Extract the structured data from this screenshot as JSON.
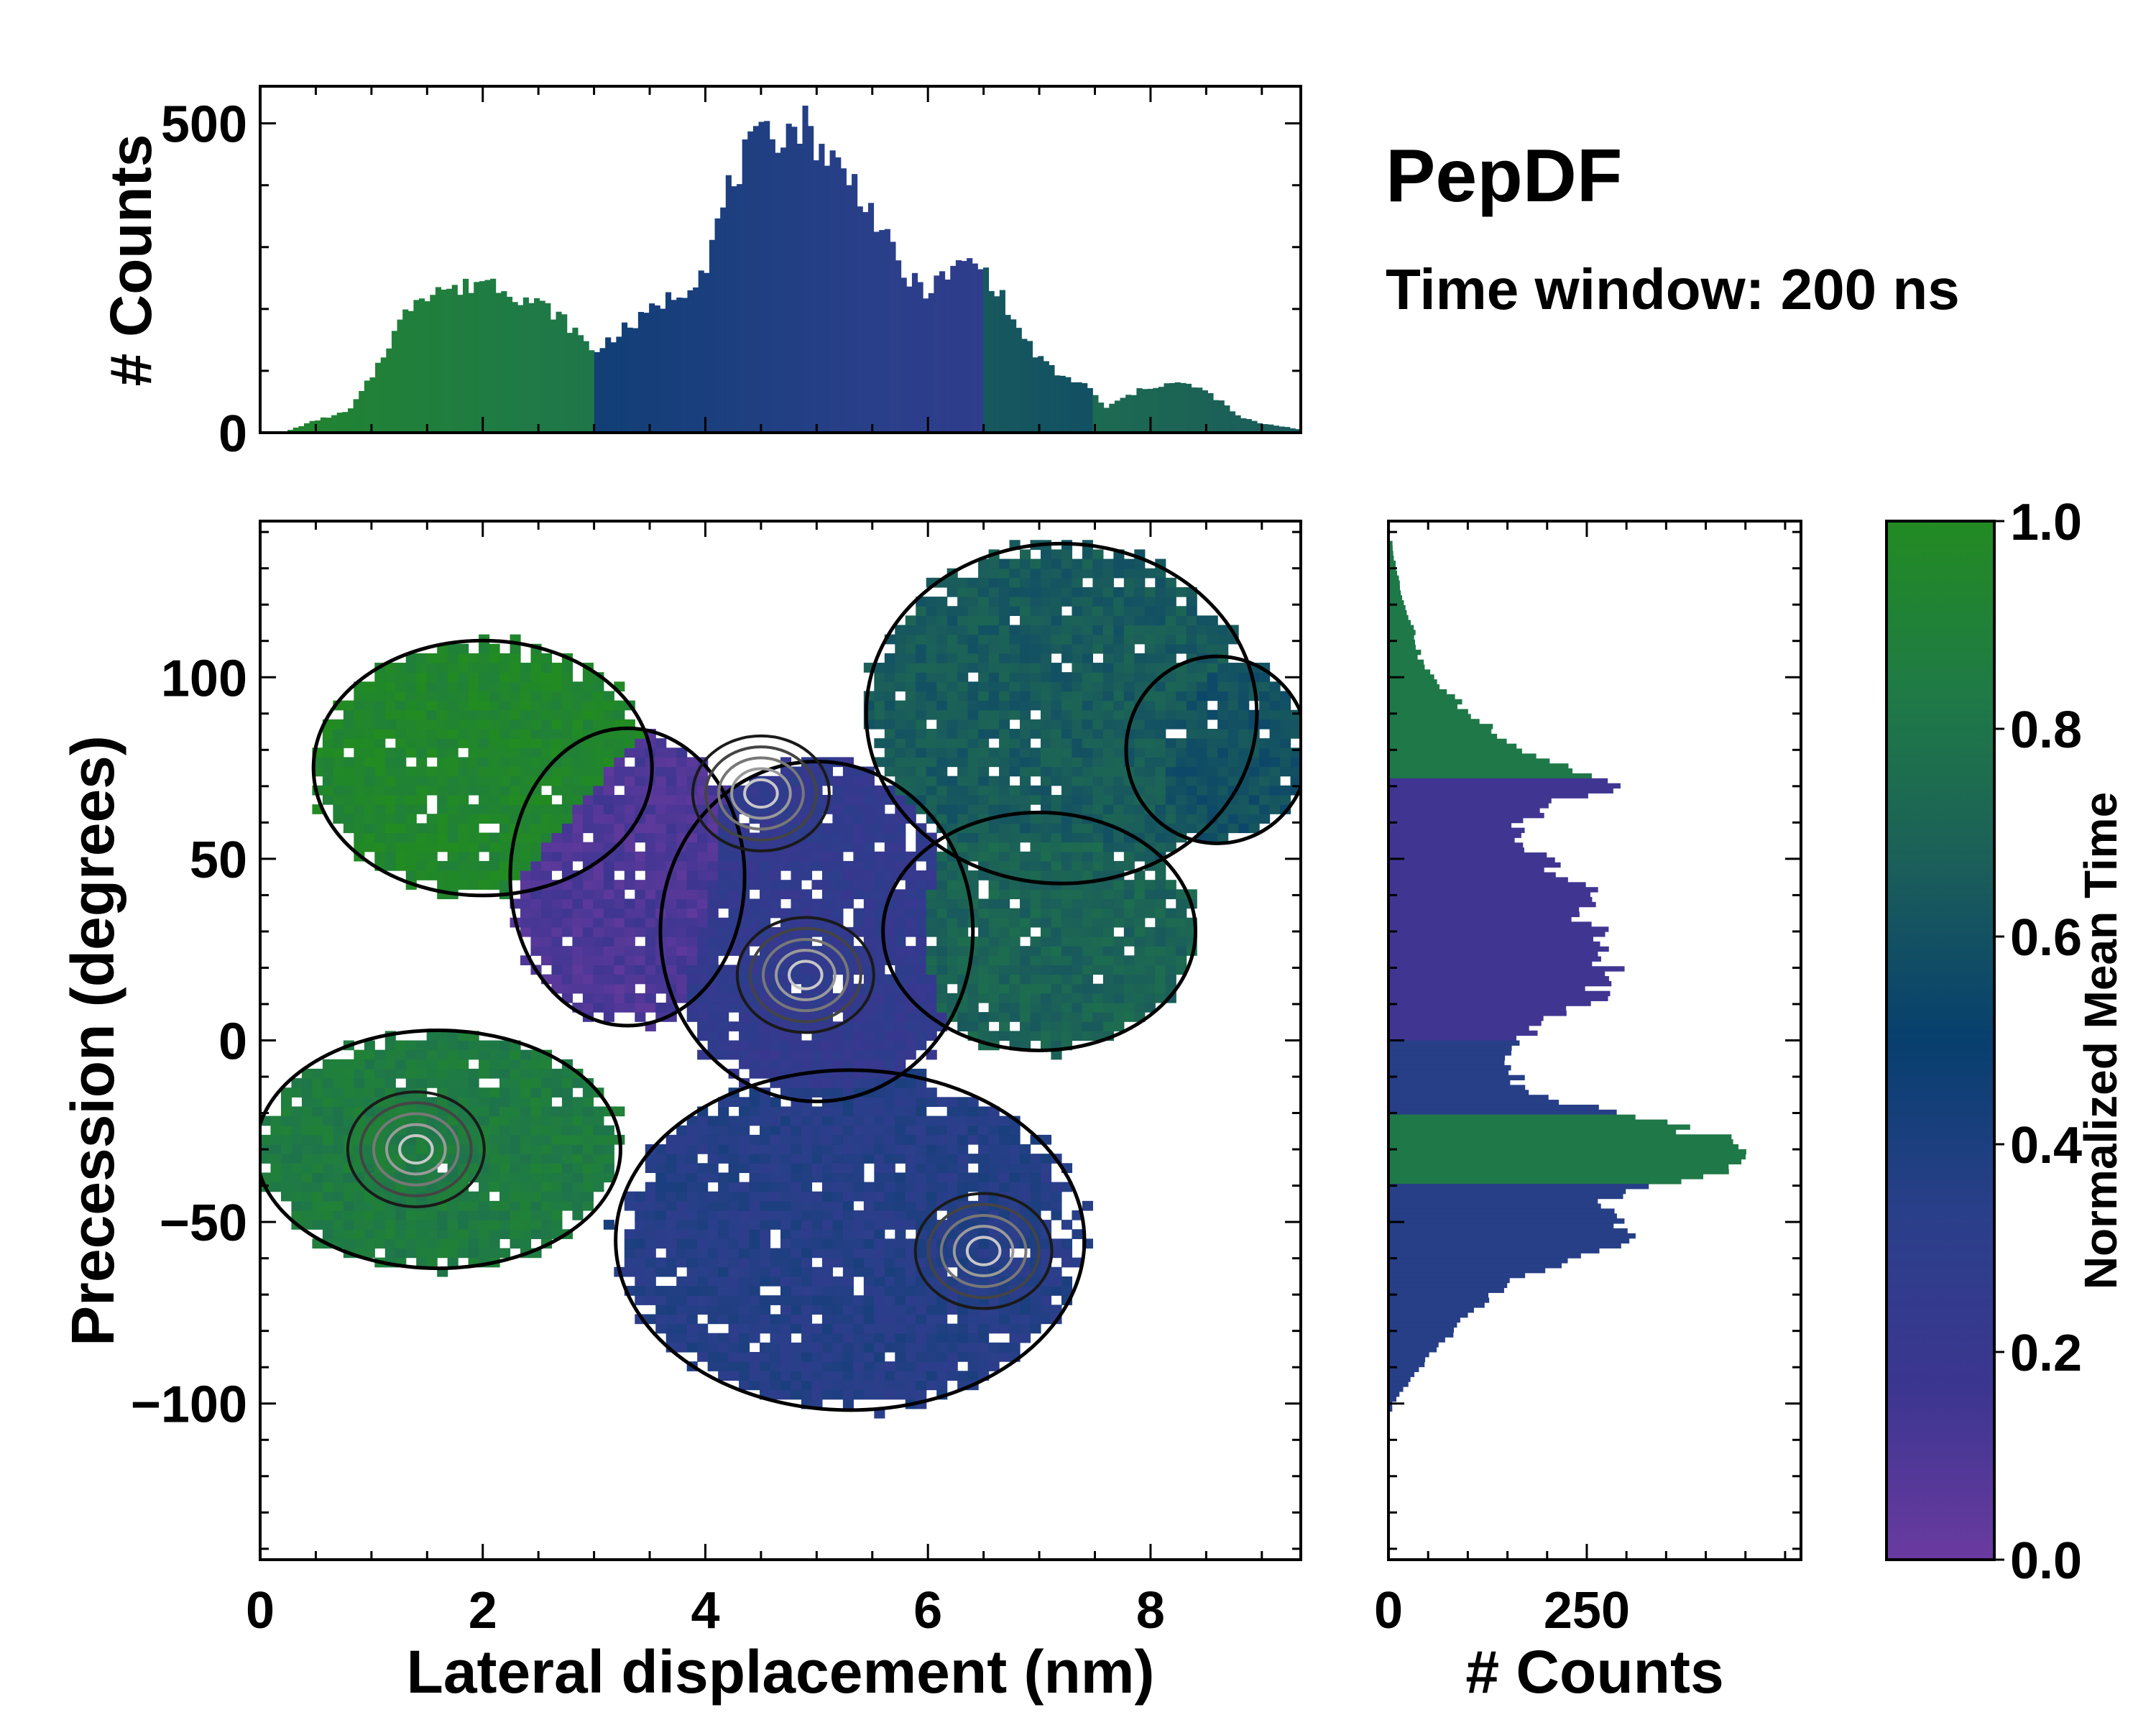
{
  "figure": {
    "title": "PepDF",
    "subtitle": "Time window: 200 ns"
  },
  "chart_data": [
    {
      "type": "heatmap",
      "name": "joint-distribution",
      "xlabel": "Lateral displacement (nm)",
      "ylabel": "Precession (degrees)",
      "xlim": [
        0,
        9.35
      ],
      "ylim": [
        -143,
        143
      ],
      "xticks": [
        0,
        2,
        4,
        6,
        8
      ],
      "yticks": [
        -100,
        -50,
        0,
        50,
        100
      ],
      "xtick_labels": [
        "0",
        "2",
        "4",
        "6",
        "8"
      ],
      "ytick_labels": [
        "−100",
        "−50",
        "0",
        "50",
        "100"
      ],
      "color_metric": "Normalized Mean Time",
      "regions": [
        {
          "name": "left-cluster-upper",
          "cx": 2.0,
          "cy": 75,
          "rx": 1.3,
          "ry": 30,
          "value": 0.95
        },
        {
          "name": "left-cluster-lower",
          "cx": 1.6,
          "cy": -30,
          "rx": 1.4,
          "ry": 28,
          "value": 0.85
        },
        {
          "name": "mid-cluster",
          "cx": 3.3,
          "cy": 45,
          "rx": 0.9,
          "ry": 35,
          "value": 0.1
        },
        {
          "name": "central-upper",
          "cx": 5.0,
          "cy": 30,
          "rx": 1.2,
          "ry": 40,
          "value": 0.25
        },
        {
          "name": "central-lower",
          "cx": 5.3,
          "cy": -55,
          "rx": 1.8,
          "ry": 40,
          "value": 0.35
        },
        {
          "name": "right-upper",
          "cx": 7.2,
          "cy": 90,
          "rx": 1.5,
          "ry": 40,
          "value": 0.65
        },
        {
          "name": "right-mid",
          "cx": 7.0,
          "cy": 30,
          "rx": 1.2,
          "ry": 28,
          "value": 0.7
        },
        {
          "name": "far-right",
          "cx": 8.6,
          "cy": 80,
          "rx": 0.7,
          "ry": 22,
          "value": 0.6
        }
      ],
      "density_peaks": [
        {
          "x": 4.9,
          "y": 18
        },
        {
          "x": 1.4,
          "y": -30
        },
        {
          "x": 6.5,
          "y": -58
        },
        {
          "x": 4.5,
          "y": 68
        }
      ]
    },
    {
      "type": "bar",
      "name": "top-histogram",
      "ylabel": "# Counts",
      "ylim": [
        0,
        560
      ],
      "yticks": [
        0,
        500
      ],
      "ytick_labels": [
        "0",
        "500"
      ],
      "x_range": [
        0,
        9.35
      ],
      "envelope_x": [
        0.2,
        0.5,
        0.8,
        1.0,
        1.2,
        1.4,
        1.6,
        1.8,
        2.0,
        2.2,
        2.4,
        2.6,
        2.8,
        3.0,
        3.2,
        3.4,
        3.6,
        3.8,
        4.0,
        4.2,
        4.4,
        4.6,
        4.8,
        4.9,
        5.0,
        5.2,
        5.4,
        5.6,
        5.8,
        6.0,
        6.2,
        6.4,
        6.6,
        6.8,
        7.0,
        7.2,
        7.4,
        7.6,
        7.8,
        8.0,
        8.2,
        8.4,
        8.6,
        8.8,
        9.0,
        9.2,
        9.35
      ],
      "envelope_counts": [
        0,
        20,
        35,
        90,
        160,
        220,
        235,
        230,
        250,
        235,
        215,
        200,
        170,
        130,
        160,
        180,
        210,
        230,
        270,
        390,
        460,
        480,
        495,
        500,
        470,
        430,
        390,
        320,
        250,
        230,
        260,
        280,
        240,
        170,
        120,
        90,
        80,
        40,
        60,
        75,
        80,
        75,
        55,
        25,
        15,
        10,
        5
      ],
      "color_by": "Normalized Mean Time"
    },
    {
      "type": "bar",
      "name": "right-histogram",
      "xlabel": "# Counts",
      "xlim": [
        0,
        520
      ],
      "xticks": [
        0,
        250
      ],
      "xtick_labels": [
        "0",
        "250"
      ],
      "y_range": [
        -143,
        143
      ],
      "envelope_y": [
        -100,
        -90,
        -80,
        -70,
        -60,
        -55,
        -50,
        -45,
        -40,
        -35,
        -30,
        -25,
        -20,
        -15,
        -10,
        -5,
        0,
        5,
        10,
        15,
        20,
        25,
        30,
        35,
        40,
        45,
        50,
        55,
        60,
        65,
        70,
        75,
        80,
        85,
        90,
        95,
        100,
        105,
        110,
        115,
        120,
        125,
        130,
        135
      ],
      "envelope_counts": [
        5,
        40,
        80,
        130,
        220,
        300,
        290,
        250,
        330,
        420,
        440,
        390,
        300,
        180,
        160,
        150,
        160,
        200,
        250,
        270,
        280,
        260,
        270,
        240,
        260,
        220,
        200,
        150,
        170,
        200,
        290,
        230,
        170,
        140,
        100,
        80,
        55,
        40,
        35,
        30,
        20,
        15,
        10,
        5
      ],
      "color_by": "Normalized Mean Time"
    }
  ],
  "colorbar": {
    "label": "Normalized Mean Time",
    "range": [
      0,
      1
    ],
    "ticks": [
      0,
      0.2,
      0.4,
      0.6,
      0.8,
      1.0
    ],
    "tick_labels": [
      "0.0",
      "0.2",
      "0.4",
      "0.6",
      "0.8",
      "1.0"
    ],
    "colors": [
      "#6a3aa0",
      "#3b3690",
      "#2a3f8a",
      "#073f6e",
      "#1b5e5a",
      "#1f7a46",
      "#228b22"
    ]
  }
}
